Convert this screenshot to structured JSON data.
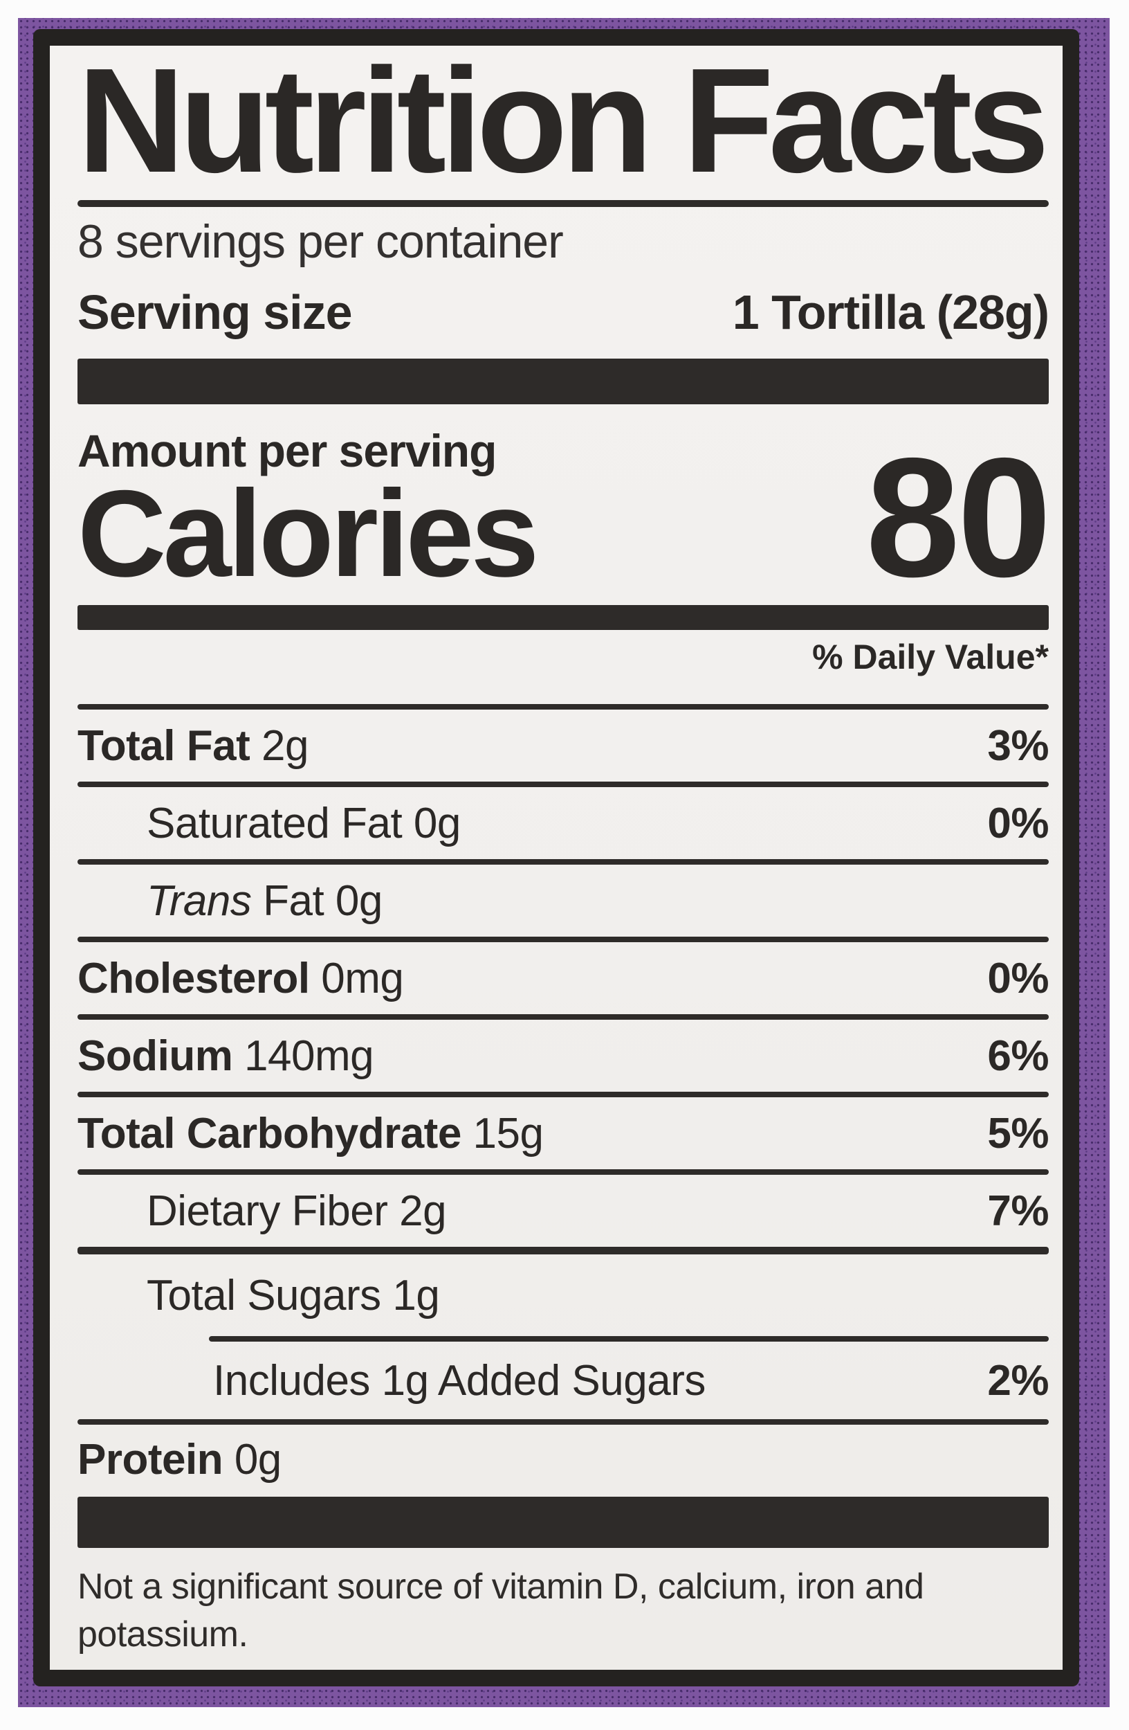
{
  "colors": {
    "package_purple": "#7d55a0",
    "package_dot": "#452a68",
    "label_background": "#f2f0ee",
    "ink": "#2b2826",
    "page_margin": "#fcfcfc"
  },
  "label": {
    "title": "Nutrition Facts",
    "servings_per_container": "8 servings per container",
    "serving_size": {
      "label": "Serving size",
      "value": "1 Tortilla (28g)"
    },
    "amount_per_serving": "Amount per serving",
    "calories": {
      "label": "Calories",
      "value": "80"
    },
    "daily_value_header": "% Daily Value*",
    "rows": [
      {
        "bold": "Total Fat",
        "text": " 2g",
        "dv": "3%"
      },
      {
        "text": "Saturated Fat 0g",
        "dv": "0%"
      },
      {
        "italic": "Trans",
        "text": " Fat 0g",
        "dv": ""
      },
      {
        "bold": "Cholesterol",
        "text": " 0mg",
        "dv": "0%"
      },
      {
        "bold": "Sodium",
        "text": " 140mg",
        "dv": "6%"
      },
      {
        "bold": "Total Carbohydrate",
        "text": " 15g",
        "dv": "5%"
      },
      {
        "text": "Dietary Fiber 2g",
        "dv": "7%"
      },
      {
        "text": "Total Sugars 1g",
        "dv": ""
      },
      {
        "text": "Includes 1g Added Sugars",
        "dv": "2%"
      },
      {
        "bold": "Protein",
        "text": " 0g",
        "dv": ""
      }
    ],
    "footnote": "Not a significant source of vitamin D, calcium, iron and potassium."
  }
}
